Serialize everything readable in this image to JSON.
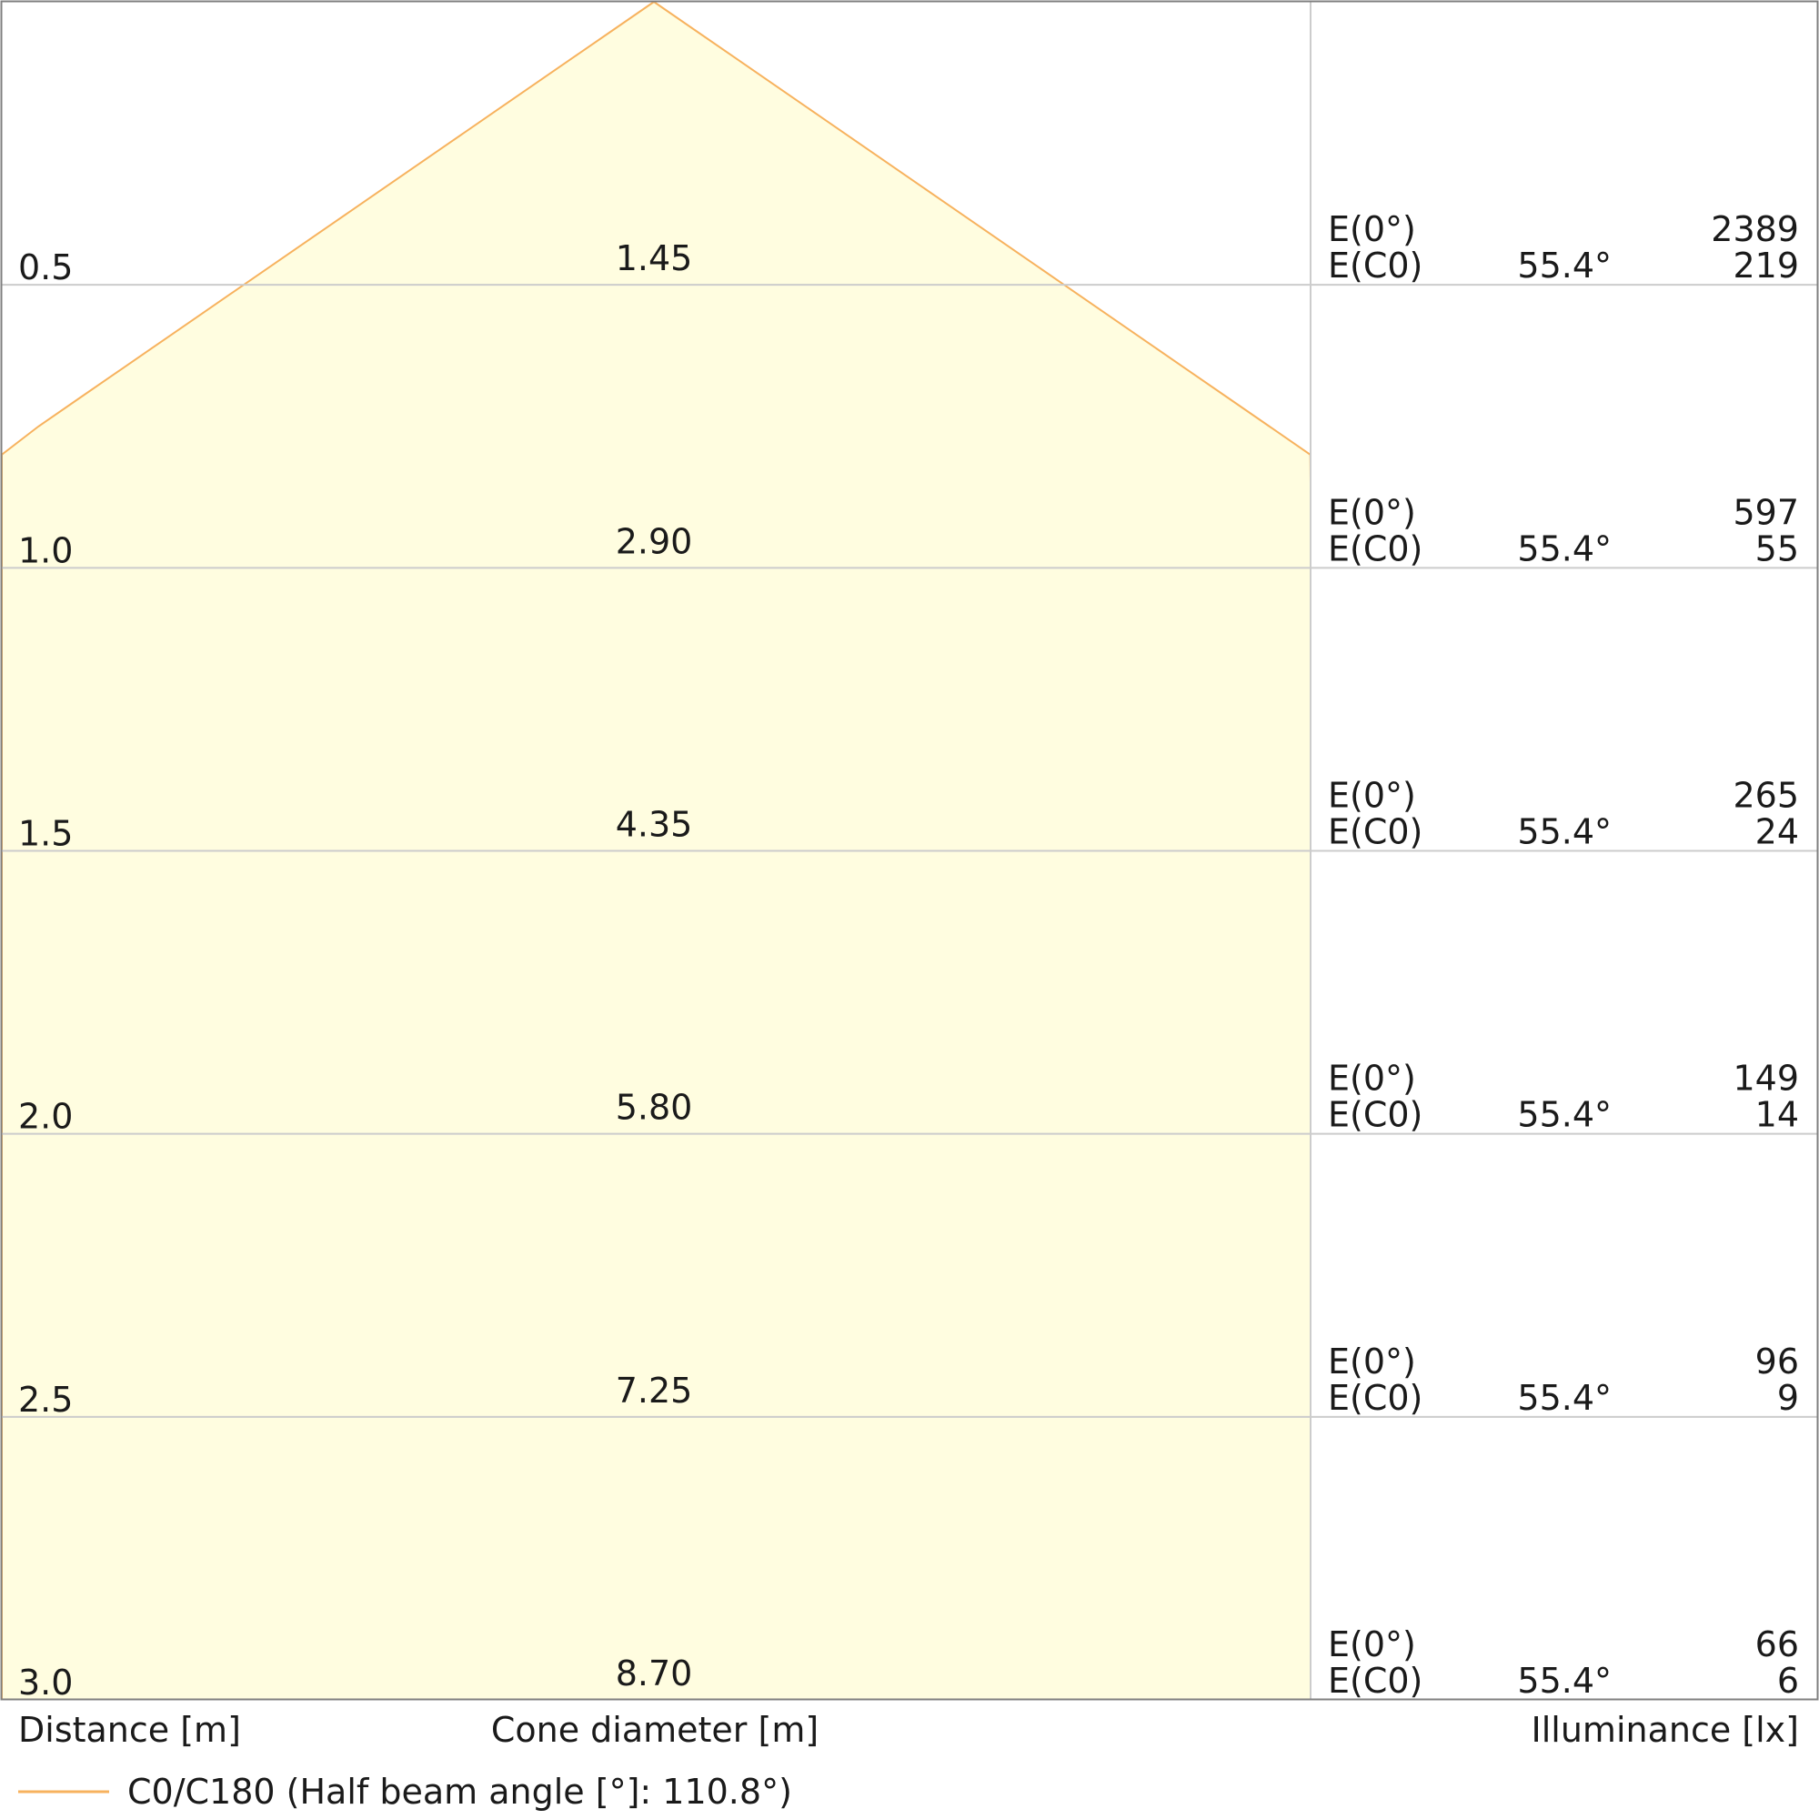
{
  "chart_data": {
    "type": "table",
    "title": "",
    "xlabel": "Distance [m]",
    "middle_label": "Cone diameter [m]",
    "ylabel": "Illuminance [lx]",
    "legend": {
      "label": "C0/C180 (Half beam angle [°]: 110.8°)",
      "color": "#f7b25e"
    },
    "row_labels": {
      "center": "E(0°)",
      "edge": "E(C0)"
    },
    "rows": [
      {
        "distance": "0.5",
        "diameter": "1.45",
        "angle": "55.4°",
        "e_center": "2389",
        "e_edge": "219"
      },
      {
        "distance": "1.0",
        "diameter": "2.90",
        "angle": "55.4°",
        "e_center": "597",
        "e_edge": "55"
      },
      {
        "distance": "1.5",
        "diameter": "4.35",
        "angle": "55.4°",
        "e_center": "265",
        "e_edge": "24"
      },
      {
        "distance": "2.0",
        "diameter": "5.80",
        "angle": "55.4°",
        "e_center": "149",
        "e_edge": "14"
      },
      {
        "distance": "2.5",
        "diameter": "7.25",
        "angle": "55.4°",
        "e_center": "96",
        "e_edge": "9"
      },
      {
        "distance": "3.0",
        "diameter": "8.70",
        "angle": "55.4°",
        "e_center": "66",
        "e_edge": "6"
      }
    ],
    "half_beam_angle_deg": 55.4,
    "x_range_m": [
      0,
      3.0
    ],
    "colors": {
      "cone_fill": "#fffde0",
      "cone_stroke": "#f7b25e",
      "grid": "#cccccc",
      "border": "#808080"
    }
  }
}
